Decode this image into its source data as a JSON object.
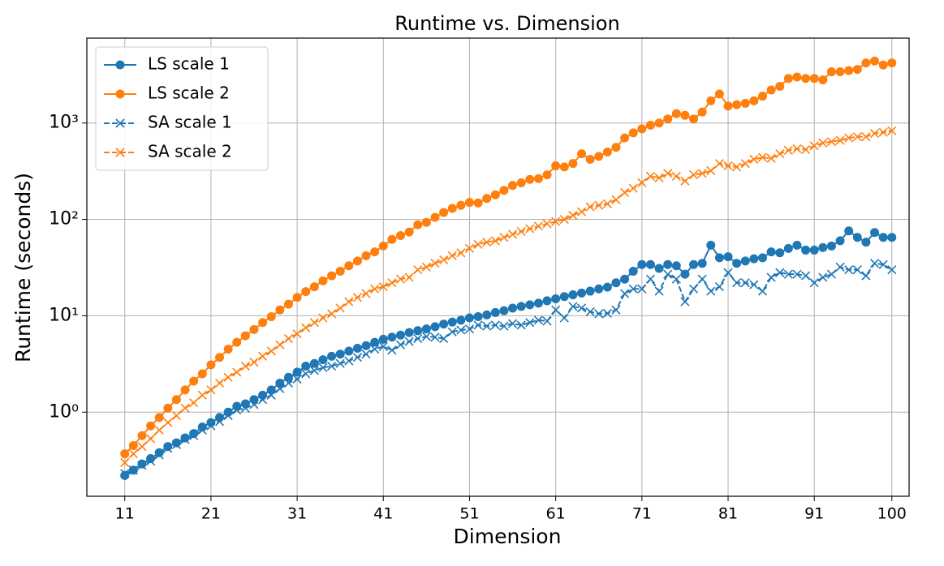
{
  "chart_data": {
    "type": "line",
    "title": "Runtime vs. Dimension",
    "xlabel": "Dimension",
    "ylabel": "Runtime (seconds)",
    "yscale": "log",
    "grid": true,
    "legend": "upper left",
    "xlim": [
      6.6,
      102
    ],
    "ylim": [
      0.134,
      7600
    ],
    "xticks": [
      11,
      21,
      31,
      41,
      51,
      61,
      71,
      81,
      91,
      100
    ],
    "yticks": [
      {
        "value": 1,
        "label": "10⁰"
      },
      {
        "value": 10,
        "label": "10¹"
      },
      {
        "value": 100,
        "label": "10²"
      },
      {
        "value": 1000,
        "label": "10³"
      }
    ],
    "x": [
      11,
      12,
      13,
      14,
      15,
      16,
      17,
      18,
      19,
      20,
      21,
      22,
      23,
      24,
      25,
      26,
      27,
      28,
      29,
      30,
      31,
      32,
      33,
      34,
      35,
      36,
      37,
      38,
      39,
      40,
      41,
      42,
      43,
      44,
      45,
      46,
      47,
      48,
      49,
      50,
      51,
      52,
      53,
      54,
      55,
      56,
      57,
      58,
      59,
      60,
      61,
      62,
      63,
      64,
      65,
      66,
      67,
      68,
      69,
      70,
      71,
      72,
      73,
      74,
      75,
      76,
      77,
      78,
      79,
      80,
      81,
      82,
      83,
      84,
      85,
      86,
      87,
      88,
      89,
      90,
      91,
      92,
      93,
      94,
      95,
      96,
      97,
      98,
      99,
      100
    ],
    "series": [
      {
        "name": "LS scale 1",
        "color": "#1f77b4",
        "marker": "circle",
        "linestyle": "solid",
        "values": [
          0.22,
          0.25,
          0.29,
          0.33,
          0.38,
          0.44,
          0.48,
          0.54,
          0.6,
          0.7,
          0.78,
          0.88,
          1.0,
          1.15,
          1.22,
          1.35,
          1.5,
          1.7,
          2.0,
          2.3,
          2.6,
          3.0,
          3.2,
          3.5,
          3.8,
          4.0,
          4.3,
          4.6,
          4.9,
          5.3,
          5.7,
          6.0,
          6.3,
          6.7,
          7.0,
          7.3,
          7.7,
          8.2,
          8.6,
          9.0,
          9.5,
          9.8,
          10.2,
          10.8,
          11.3,
          12.0,
          12.5,
          13.0,
          13.5,
          14.3,
          15.0,
          15.8,
          16.5,
          17.2,
          18.0,
          19.0,
          19.8,
          22,
          24,
          29,
          34,
          34,
          31,
          34,
          33,
          27,
          34,
          35,
          54,
          40,
          41,
          35,
          37,
          39,
          40,
          46,
          45,
          50,
          54,
          48,
          48,
          51,
          53,
          60,
          76,
          65,
          58,
          73,
          65,
          65
        ]
      },
      {
        "name": "LS scale 2",
        "color": "#ff7f0e",
        "marker": "circle",
        "linestyle": "solid",
        "values": [
          0.37,
          0.45,
          0.57,
          0.72,
          0.88,
          1.1,
          1.35,
          1.7,
          2.1,
          2.5,
          3.1,
          3.7,
          4.5,
          5.3,
          6.2,
          7.2,
          8.5,
          9.8,
          11.5,
          13.2,
          15.5,
          17.8,
          20,
          23,
          26,
          29,
          33,
          37,
          42,
          46,
          53,
          62,
          68,
          74,
          88,
          93,
          105,
          118,
          130,
          140,
          150,
          148,
          165,
          180,
          200,
          225,
          240,
          260,
          265,
          290,
          360,
          350,
          380,
          480,
          420,
          450,
          500,
          560,
          700,
          790,
          870,
          950,
          1000,
          1100,
          1250,
          1200,
          1100,
          1300,
          1700,
          2000,
          1500,
          1550,
          1600,
          1700,
          1900,
          2200,
          2400,
          2900,
          3000,
          2900,
          2900,
          2800,
          3400,
          3400,
          3500,
          3600,
          4200,
          4400,
          4000,
          4200
        ]
      },
      {
        "name": "SA scale 1",
        "color": "#1f77b4",
        "marker": "x",
        "linestyle": "dashed",
        "values": [
          0.23,
          0.25,
          0.28,
          0.31,
          0.36,
          0.42,
          0.46,
          0.52,
          0.57,
          0.65,
          0.72,
          0.8,
          0.92,
          1.05,
          1.1,
          1.2,
          1.35,
          1.5,
          1.75,
          2.0,
          2.2,
          2.5,
          2.7,
          2.9,
          3.0,
          3.2,
          3.4,
          3.7,
          4.0,
          4.5,
          4.8,
          4.4,
          5.0,
          5.4,
          5.8,
          6.1,
          6.0,
          5.8,
          6.8,
          7.1,
          7.3,
          8.0,
          7.8,
          8.0,
          7.8,
          8.3,
          8.0,
          8.5,
          9.0,
          8.8,
          11.5,
          9.5,
          12.5,
          12.0,
          11.0,
          10.5,
          10.6,
          11.5,
          17,
          19,
          19,
          24,
          18,
          27,
          24,
          14,
          19,
          24,
          18,
          20,
          28,
          22,
          22,
          21,
          18,
          25,
          28,
          27,
          27,
          26,
          22,
          25,
          27,
          32,
          30,
          30,
          26,
          35,
          34,
          30
        ]
      },
      {
        "name": "SA scale 2",
        "color": "#ff7f0e",
        "marker": "x",
        "linestyle": "dashed",
        "values": [
          0.3,
          0.37,
          0.44,
          0.53,
          0.65,
          0.78,
          0.92,
          1.1,
          1.25,
          1.5,
          1.7,
          2.0,
          2.3,
          2.6,
          3.0,
          3.3,
          3.8,
          4.3,
          5.0,
          5.8,
          6.5,
          7.5,
          8.5,
          9.5,
          10.5,
          12,
          14,
          15.5,
          17,
          19,
          20,
          22,
          24,
          25,
          30,
          32,
          35,
          38,
          42,
          45,
          50,
          55,
          58,
          60,
          65,
          70,
          75,
          80,
          85,
          90,
          95,
          100,
          110,
          120,
          135,
          140,
          145,
          160,
          190,
          210,
          240,
          280,
          270,
          300,
          280,
          250,
          290,
          300,
          320,
          380,
          360,
          350,
          380,
          420,
          440,
          430,
          480,
          520,
          540,
          530,
          580,
          620,
          640,
          660,
          700,
          720,
          720,
          780,
          800,
          830
        ]
      }
    ]
  }
}
